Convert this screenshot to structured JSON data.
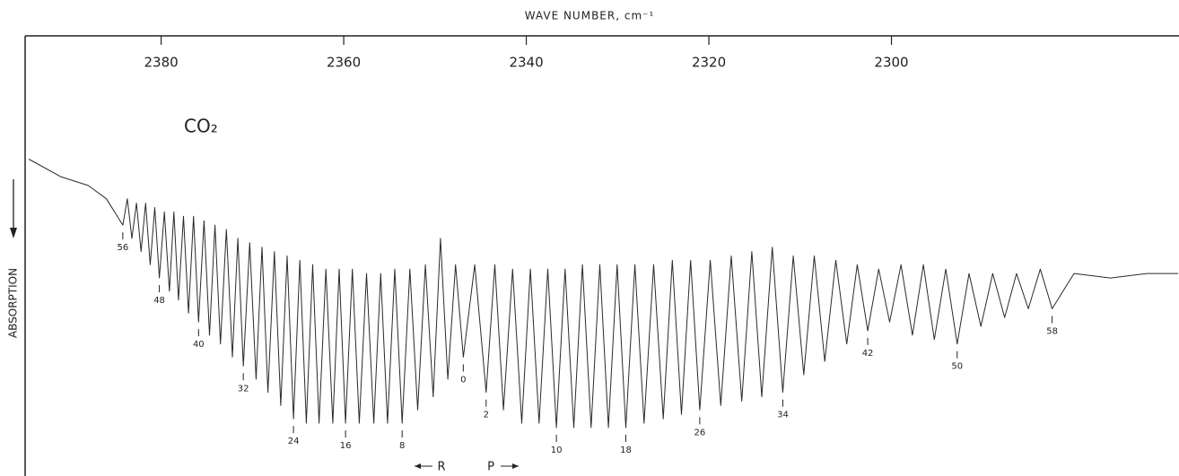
{
  "chart_data": {
    "type": "line",
    "title": "WAVE NUMBER, cm⁻¹",
    "ylabel": "ABSORPTION",
    "annotation": "CO₂",
    "branch_labels": [
      "R",
      "P"
    ],
    "xlim": [
      2394.9,
      2268.5
    ],
    "xticks": [
      2380,
      2360,
      2340,
      2320,
      2300
    ],
    "ylim": [
      0,
      100
    ],
    "y_inverted": true,
    "color": "#2a2a2a",
    "x": [
      2394.5,
      2391,
      2388,
      2386,
      2384.2,
      2383.7,
      2383.2,
      2382.7,
      2382.2,
      2381.7,
      2381.2,
      2380.7,
      2380.2,
      2379.65,
      2379.1,
      2378.6,
      2378.1,
      2377.55,
      2377.0,
      2376.45,
      2375.9,
      2375.3,
      2374.7,
      2374.1,
      2373.5,
      2372.85,
      2372.2,
      2371.6,
      2371.0,
      2370.3,
      2369.6,
      2368.95,
      2368.3,
      2367.6,
      2366.9,
      2366.2,
      2365.5,
      2364.8,
      2364.1,
      2363.4,
      2362.7,
      2361.95,
      2361.2,
      2360.5,
      2359.8,
      2359.05,
      2358.3,
      2357.5,
      2356.7,
      2355.95,
      2355.2,
      2354.4,
      2353.6,
      2352.75,
      2351.9,
      2351.05,
      2350.2,
      2349.4,
      2348.6,
      2347.75,
      2346.9,
      2345.65,
      2344.4,
      2343.45,
      2342.5,
      2341.5,
      2340.5,
      2339.55,
      2338.6,
      2337.65,
      2336.7,
      2335.75,
      2334.8,
      2333.85,
      2332.9,
      2331.95,
      2331.0,
      2330.05,
      2329.1,
      2328.1,
      2327.1,
      2326.05,
      2325.0,
      2324.0,
      2323.0,
      2322.0,
      2321.0,
      2319.85,
      2318.7,
      2317.55,
      2316.4,
      2315.3,
      2314.2,
      2313.05,
      2311.9,
      2310.75,
      2309.6,
      2308.45,
      2307.3,
      2306.1,
      2304.9,
      2303.75,
      2302.6,
      2301.4,
      2300.2,
      2298.95,
      2297.7,
      2296.5,
      2295.3,
      2294.05,
      2292.8,
      2291.5,
      2290.2,
      2288.9,
      2287.6,
      2286.3,
      2285.0,
      2283.7,
      2282.4,
      2280,
      2276,
      2272,
      2268.6
    ],
    "values": [
      28,
      32,
      34,
      37,
      43,
      37,
      46,
      38,
      49,
      38,
      52,
      39,
      55,
      40,
      58,
      40,
      60,
      41,
      63,
      41,
      65,
      42,
      68,
      43,
      70,
      44,
      73,
      46,
      75,
      47,
      78,
      48,
      81,
      49,
      84,
      50,
      87,
      51,
      88,
      52,
      88,
      53,
      88,
      53,
      88,
      53,
      88,
      54,
      88,
      54,
      88,
      53,
      88,
      53,
      85,
      52,
      82,
      46,
      78,
      52,
      73,
      52,
      81,
      52,
      85,
      53,
      88,
      53,
      88,
      53,
      89,
      53,
      89,
      52,
      89,
      52,
      89,
      52,
      89,
      52,
      88,
      52,
      87,
      51,
      86,
      51,
      85,
      51,
      84,
      50,
      83,
      49,
      82,
      48,
      81,
      50,
      77,
      50,
      74,
      51,
      70,
      52,
      67,
      53,
      65,
      52,
      68,
      52,
      69,
      53,
      70,
      54,
      66,
      54,
      64,
      54,
      62,
      53,
      62,
      54,
      55,
      54,
      54
    ],
    "line_labels": [
      {
        "label": "56",
        "x": 2384.2
      },
      {
        "label": "48",
        "x": 2380.2
      },
      {
        "label": "40",
        "x": 2375.9
      },
      {
        "label": "32",
        "x": 2371.0
      },
      {
        "label": "24",
        "x": 2365.5
      },
      {
        "label": "16",
        "x": 2359.8
      },
      {
        "label": "8",
        "x": 2353.6
      },
      {
        "label": "0",
        "x": 2346.9
      },
      {
        "label": "2",
        "x": 2344.4
      },
      {
        "label": "10",
        "x": 2336.7
      },
      {
        "label": "18",
        "x": 2329.1
      },
      {
        "label": "26",
        "x": 2321.0
      },
      {
        "label": "34",
        "x": 2311.9
      },
      {
        "label": "42",
        "x": 2302.6
      },
      {
        "label": "50",
        "x": 2292.8
      },
      {
        "label": "58",
        "x": 2282.4
      }
    ]
  }
}
